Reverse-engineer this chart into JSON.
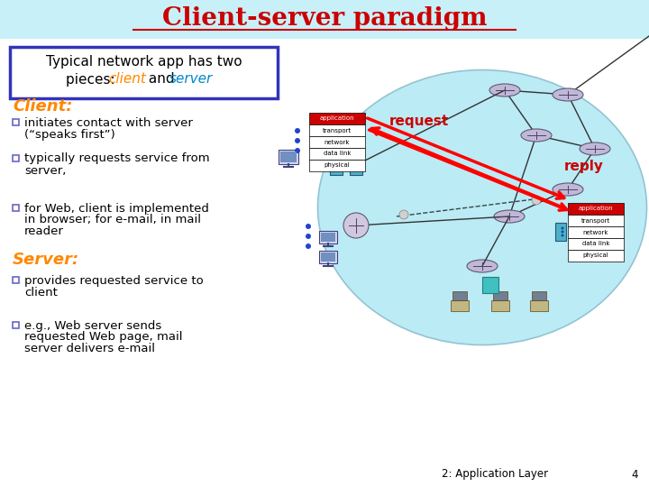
{
  "title": "Client-server paradigm",
  "title_color": "#cc0000",
  "bg_color": "#ffffff",
  "header_bg": "#c8f0f8",
  "box_text_line1": "Typical network app has two",
  "box_text_line2_pre": "pieces: ",
  "box_text_line2_client": "client",
  "box_text_line2_mid": " and ",
  "box_text_line2_server": "server",
  "client_label": "Client:",
  "server_label": "Server:",
  "client_bullets": [
    [
      "initiates contact with server",
      "(“speaks first”)"
    ],
    [
      "typically requests service from",
      "server,"
    ],
    [
      "for Web, client is implemented",
      "in browser; for e-mail, in mail",
      "reader"
    ]
  ],
  "server_bullets": [
    [
      "provides requested service to",
      "client"
    ],
    [
      "e.g., Web server sends",
      "requested Web page, mail",
      "server delivers e-mail"
    ]
  ],
  "footer_text": "2: Application Layer",
  "footer_page": "4",
  "request_label": "request",
  "reply_label": "reply",
  "layer_labels": [
    "application",
    "transport",
    "network",
    "data link",
    "physical"
  ],
  "accent_color": "#cc0000",
  "orange_color": "#ff8800",
  "teal_color": "#0088cc",
  "network_fill": "#b0e8f4",
  "box_border": "#3333bb",
  "bullet_border": "#6666cc"
}
